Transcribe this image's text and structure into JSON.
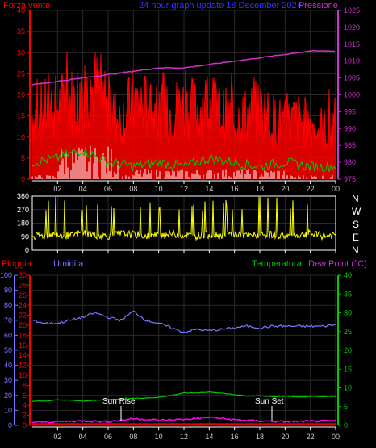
{
  "colors": {
    "background": "#000000",
    "wind": "#ff0000",
    "wind_gust_green": "#00cc00",
    "wind_white": "#ffffff",
    "pressure": "#cc33cc",
    "pressure_label": "#cc33cc",
    "title_blue": "#3333ff",
    "direction": "#ffff00",
    "rain": "#ff0000",
    "humidity": "#7777ff",
    "temperature": "#00cc00",
    "dewpoint": "#ff00ff",
    "axis_left_red": "#ff0000",
    "axis_right_magenta": "#cc33cc",
    "axis_humidity": "#7777ff",
    "axis_temp": "#00cc00",
    "grid": "#2a2a2a",
    "frame": "#ffffff",
    "annot": "#ffffff"
  },
  "header": {
    "wind_label": "Forza vento",
    "title": "24 hour graph update 18 December 2024",
    "pressure_label": "Pressione"
  },
  "direction_panel": {
    "letters": [
      "N",
      "W",
      "S",
      "E",
      "N"
    ]
  },
  "bottom_header": {
    "rain_label": "Pioggia",
    "humidity_label": "Umidita",
    "temperature_label": "Temperatura",
    "dewpoint_label": "Dew Point (°C)"
  },
  "annotations": {
    "sunrise": "Sun Rise",
    "sunset": "Sun Set"
  },
  "chart_data": [
    {
      "type": "line",
      "title": "24 hour graph update 18 December 2024",
      "xlabel": "",
      "x_ticks": [
        "02",
        "04",
        "06",
        "08",
        "10",
        "12",
        "14",
        "16",
        "18",
        "20",
        "22",
        "00"
      ],
      "xlim": [
        0,
        24
      ],
      "y_left": {
        "label": "Forza vento",
        "ylim": [
          0,
          40
        ],
        "ticks": [
          0,
          5,
          10,
          15,
          20,
          25,
          30,
          35,
          40
        ]
      },
      "y_right": {
        "label": "Pressione",
        "ylim": [
          975,
          1025
        ],
        "ticks": [
          975,
          980,
          985,
          990,
          995,
          1000,
          1005,
          1010,
          1015,
          1020,
          1025
        ]
      },
      "series": [
        {
          "name": "Forza vento",
          "axis": "left",
          "x": [
            0,
            1,
            2,
            3,
            4,
            5,
            6,
            7,
            8,
            9,
            10,
            11,
            12,
            13,
            14,
            15,
            16,
            17,
            18,
            19,
            20,
            21,
            22,
            23,
            24
          ],
          "values": [
            14,
            15,
            16,
            17,
            18,
            20,
            15,
            13,
            17,
            16,
            14,
            15,
            16,
            15,
            17,
            14,
            13,
            14,
            15,
            13,
            12,
            13,
            12,
            11,
            10
          ]
        },
        {
          "name": "",
          "axis": "left",
          "x": [
            0,
            2,
            4,
            6,
            8,
            10,
            12,
            14,
            16,
            18,
            20,
            22,
            24
          ],
          "values": [
            4,
            5,
            7,
            4,
            3,
            4,
            3,
            5,
            4,
            3,
            4,
            3,
            3
          ]
        },
        {
          "name": "Pressione",
          "axis": "right",
          "x": [
            0,
            2,
            4,
            6,
            8,
            10,
            12,
            14,
            16,
            18,
            20,
            22,
            24
          ],
          "values": [
            1003,
            1004,
            1005,
            1006,
            1007,
            1008,
            1008,
            1009,
            1010,
            1011,
            1012,
            1013,
            1013
          ]
        }
      ]
    },
    {
      "type": "line",
      "title": "",
      "x_ticks": [
        "02",
        "04",
        "06",
        "08",
        "10",
        "12",
        "14",
        "16",
        "18",
        "20",
        "22",
        "00"
      ],
      "xlim": [
        0,
        24
      ],
      "y_left": {
        "label": "",
        "ylim": [
          0,
          360
        ],
        "ticks": [
          0,
          90,
          180,
          270,
          360
        ]
      },
      "series": [
        {
          "name": "",
          "x": [
            0,
            1,
            2,
            3,
            4,
            5,
            6,
            7,
            8,
            9,
            10,
            11,
            12,
            13,
            14,
            15,
            16,
            17,
            18,
            19,
            20,
            21,
            22,
            23,
            24
          ],
          "values": [
            90,
            100,
            110,
            95,
            120,
            100,
            95,
            110,
            105,
            95,
            100,
            110,
            100,
            95,
            105,
            100,
            110,
            95,
            100,
            105,
            95,
            100,
            110,
            95,
            100
          ]
        }
      ]
    },
    {
      "type": "line",
      "title": "",
      "x_ticks": [
        "02",
        "04",
        "06",
        "08",
        "10",
        "12",
        "14",
        "16",
        "18",
        "20",
        "22",
        "00"
      ],
      "xlim": [
        0,
        24
      ],
      "y_left_rain": {
        "label": "Pioggia",
        "ylim": [
          0,
          30
        ],
        "ticks": [
          0,
          2,
          4,
          6,
          8,
          10,
          12,
          14,
          16,
          18,
          20,
          22,
          24,
          26,
          28,
          30
        ]
      },
      "y_left_humidity": {
        "label": "Umidita",
        "ylim": [
          0,
          100
        ],
        "ticks": [
          0,
          10,
          20,
          30,
          40,
          50,
          60,
          70,
          80,
          90,
          100
        ]
      },
      "y_right": {
        "label": "Temperatura / Dew Point (°C)",
        "ylim": [
          0,
          40
        ],
        "ticks": [
          0,
          5,
          10,
          15,
          20,
          25,
          30,
          35,
          40
        ]
      },
      "series": [
        {
          "name": "Umidita",
          "axis": "humidity",
          "x": [
            0,
            1,
            2,
            3,
            4,
            5,
            6,
            7,
            8,
            9,
            10,
            11,
            12,
            13,
            14,
            15,
            16,
            17,
            18,
            19,
            20,
            21,
            22,
            23,
            24
          ],
          "values": [
            70,
            68,
            68,
            70,
            72,
            75,
            72,
            70,
            76,
            70,
            68,
            65,
            62,
            64,
            63,
            64,
            65,
            66,
            65,
            66,
            66,
            66,
            66,
            66,
            67
          ]
        },
        {
          "name": "Temperatura",
          "axis": "temp",
          "x": [
            0,
            1,
            2,
            3,
            4,
            5,
            6,
            7,
            8,
            9,
            10,
            11,
            12,
            13,
            14,
            15,
            16,
            17,
            18,
            19,
            20,
            21,
            22,
            23,
            24
          ],
          "values": [
            6.5,
            6.5,
            6.8,
            6.7,
            6.5,
            6.7,
            6.9,
            7.0,
            7.2,
            7.3,
            7.5,
            8.0,
            8.7,
            8.6,
            8.9,
            8.6,
            8.2,
            7.8,
            7.9,
            7.7,
            7.8,
            7.6,
            7.7,
            7.7,
            7.7
          ]
        },
        {
          "name": "Dew Point",
          "axis": "temp",
          "x": [
            0,
            2,
            4,
            6,
            8,
            10,
            12,
            14,
            16,
            18,
            20,
            22,
            24
          ],
          "values": [
            0.8,
            1.0,
            1.2,
            1.0,
            1.8,
            1.4,
            1.6,
            2.2,
            1.5,
            1.2,
            1.0,
            1.1,
            1.2
          ]
        },
        {
          "name": "Pioggia",
          "axis": "rain",
          "x": [
            0,
            24
          ],
          "values": [
            0,
            0
          ]
        }
      ]
    }
  ]
}
